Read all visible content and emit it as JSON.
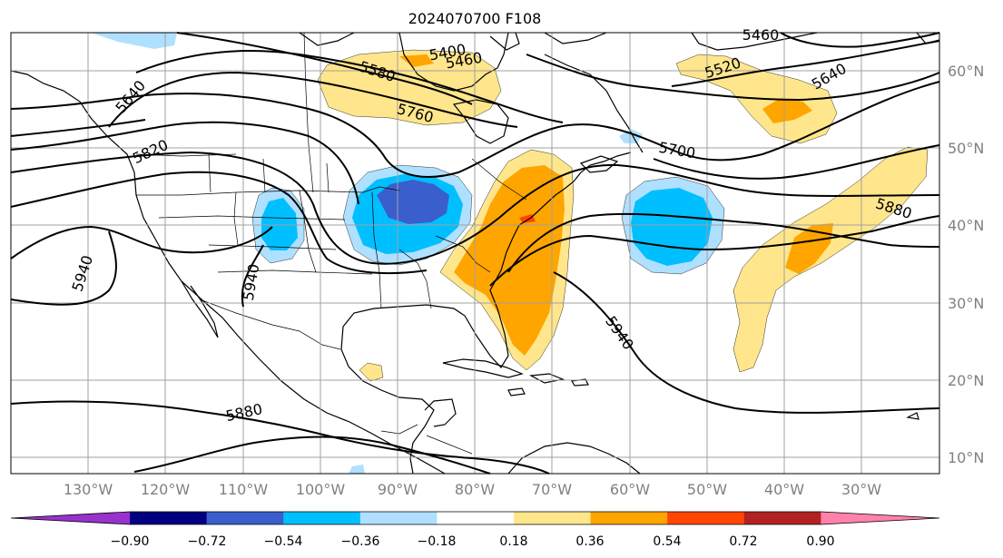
{
  "title": "2024070700 F108",
  "lon_labels": [
    "130°W",
    "120°W",
    "110°W",
    "100°W",
    "90°W",
    "80°W",
    "70°W",
    "60°W",
    "50°W",
    "40°W",
    "30°W"
  ],
  "lat_labels": [
    "60°N",
    "50°N",
    "40°N",
    "30°N",
    "20°N",
    "10°N"
  ],
  "contour_labels": [
    "5640",
    "5820",
    "5580",
    "5760",
    "5400",
    "5460",
    "5460",
    "5520",
    "5640",
    "5700",
    "5880",
    "5940",
    "5940",
    "5940",
    "5880"
  ],
  "colorbar": {
    "ticks": [
      "−0.90",
      "−0.72",
      "−0.54",
      "−0.36",
      "−0.18",
      "0.18",
      "0.36",
      "0.54",
      "0.72",
      "0.90"
    ],
    "colors": [
      "#9932cc",
      "#000080",
      "#3a5fcd",
      "#00bfff",
      "#b0e0ff",
      "#ffffff",
      "#ffe68c",
      "#ffa500",
      "#ff4500",
      "#b22222",
      "#ff82ab"
    ]
  }
}
